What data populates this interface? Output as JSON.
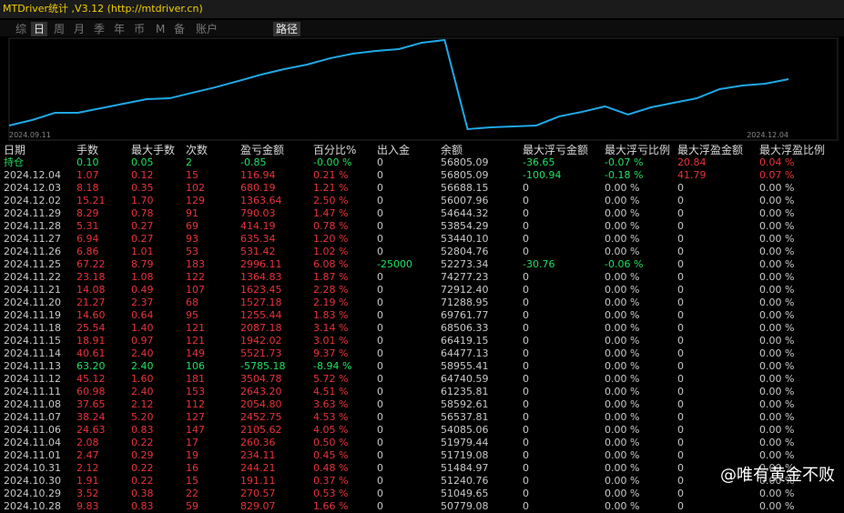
{
  "header": {
    "title": "MTDriver统计 ,V3.12 (http://mtdriver.cn)"
  },
  "tabs": [
    "综",
    "日",
    "周",
    "月",
    "季",
    "年",
    "币",
    "M",
    "备",
    "账户",
    "路径"
  ],
  "highlighted_tabs": [
    1,
    10
  ],
  "chart_data": {
    "type": "line",
    "color": "#1fa8e6",
    "ylim": [
      0,
      100
    ],
    "categories": [
      "2024.09.11",
      null,
      null,
      null,
      null,
      null,
      null,
      null,
      null,
      null,
      null,
      null,
      null,
      null,
      null,
      null,
      null,
      null,
      null,
      null,
      null,
      null,
      null,
      null,
      null,
      null,
      null,
      null,
      null,
      null,
      null,
      null,
      null,
      null,
      "2024.12.04"
    ],
    "values": [
      6.7,
      12.4,
      20,
      20,
      24.8,
      29.5,
      34.3,
      35.2,
      41,
      46.7,
      53.3,
      60,
      65.7,
      70.5,
      77.1,
      81.9,
      84.8,
      86.7,
      93.3,
      96.2,
      2.9,
      4.8,
      5.7,
      6.7,
      16.2,
      21,
      26.7,
      18.1,
      25.7,
      30.5,
      35.2,
      44.8,
      48.6,
      50.5,
      55.2
    ]
  },
  "table": {
    "columns": [
      "日期",
      "手数",
      "最大手数",
      "次数",
      "盈亏金额",
      "百分比%",
      "出入金",
      "余额",
      "最大浮亏金额",
      "最大浮亏比例",
      "最大浮盈金额",
      "最大浮盈比例"
    ],
    "rows": [
      [
        "持仓",
        "0.10",
        "0.05",
        "2",
        "-0.85",
        "-0.00 %",
        "0",
        "56805.09",
        "-36.65",
        "-0.07 %",
        "20.84",
        "0.04 %"
      ],
      [
        "2024.12.04",
        "1.07",
        "0.12",
        "15",
        "116.94",
        "0.21 %",
        "0",
        "56805.09",
        "-100.94",
        "-0.18 %",
        "41.79",
        "0.07 %"
      ],
      [
        "2024.12.03",
        "8.18",
        "0.35",
        "102",
        "680.19",
        "1.21 %",
        "0",
        "56688.15",
        "0",
        "0.00 %",
        "0",
        "0.00 %"
      ],
      [
        "2024.12.02",
        "15.21",
        "1.70",
        "129",
        "1363.64",
        "2.50 %",
        "0",
        "56007.96",
        "0",
        "0.00 %",
        "0",
        "0.00 %"
      ],
      [
        "2024.11.29",
        "8.29",
        "0.78",
        "91",
        "790.03",
        "1.47 %",
        "0",
        "54644.32",
        "0",
        "0.00 %",
        "0",
        "0.00 %"
      ],
      [
        "2024.11.28",
        "5.31",
        "0.27",
        "69",
        "414.19",
        "0.78 %",
        "0",
        "53854.29",
        "0",
        "0.00 %",
        "0",
        "0.00 %"
      ],
      [
        "2024.11.27",
        "6.94",
        "0.27",
        "93",
        "635.34",
        "1.20 %",
        "0",
        "53440.10",
        "0",
        "0.00 %",
        "0",
        "0.00 %"
      ],
      [
        "2024.11.26",
        "6.86",
        "1.01",
        "53",
        "531.42",
        "1.02 %",
        "0",
        "52804.76",
        "0",
        "0.00 %",
        "0",
        "0.00 %"
      ],
      [
        "2024.11.25",
        "67.22",
        "8.79",
        "183",
        "2996.11",
        "6.08 %",
        "-25000",
        "52273.34",
        "-30.76",
        "-0.06 %",
        "0",
        "0.00 %"
      ],
      [
        "2024.11.22",
        "23.18",
        "1.08",
        "122",
        "1364.83",
        "1.87 %",
        "0",
        "74277.23",
        "0",
        "0.00 %",
        "0",
        "0.00 %"
      ],
      [
        "2024.11.21",
        "14.08",
        "0.49",
        "107",
        "1623.45",
        "2.28 %",
        "0",
        "72912.40",
        "0",
        "0.00 %",
        "0",
        "0.00 %"
      ],
      [
        "2024.11.20",
        "21.27",
        "2.37",
        "68",
        "1527.18",
        "2.19 %",
        "0",
        "71288.95",
        "0",
        "0.00 %",
        "0",
        "0.00 %"
      ],
      [
        "2024.11.19",
        "14.60",
        "0.64",
        "95",
        "1255.44",
        "1.83 %",
        "0",
        "69761.77",
        "0",
        "0.00 %",
        "0",
        "0.00 %"
      ],
      [
        "2024.11.18",
        "25.54",
        "1.40",
        "121",
        "2087.18",
        "3.14 %",
        "0",
        "68506.33",
        "0",
        "0.00 %",
        "0",
        "0.00 %"
      ],
      [
        "2024.11.15",
        "18.91",
        "0.97",
        "121",
        "1942.02",
        "3.01 %",
        "0",
        "66419.15",
        "0",
        "0.00 %",
        "0",
        "0.00 %"
      ],
      [
        "2024.11.14",
        "40.61",
        "2.40",
        "149",
        "5521.73",
        "9.37 %",
        "0",
        "64477.13",
        "0",
        "0.00 %",
        "0",
        "0.00 %"
      ],
      [
        "2024.11.13",
        "63.20",
        "2.40",
        "106",
        "-5785.18",
        "-8.94 %",
        "0",
        "58955.41",
        "0",
        "0.00 %",
        "0",
        "0.00 %"
      ],
      [
        "2024.11.12",
        "45.12",
        "1.60",
        "181",
        "3504.78",
        "5.72 %",
        "0",
        "64740.59",
        "0",
        "0.00 %",
        "0",
        "0.00 %"
      ],
      [
        "2024.11.11",
        "60.98",
        "2.40",
        "153",
        "2643.20",
        "4.51 %",
        "0",
        "61235.81",
        "0",
        "0.00 %",
        "0",
        "0.00 %"
      ],
      [
        "2024.11.08",
        "37.65",
        "2.12",
        "112",
        "2054.80",
        "3.63 %",
        "0",
        "58592.61",
        "0",
        "0.00 %",
        "0",
        "0.00 %"
      ],
      [
        "2024.11.07",
        "38.24",
        "5.20",
        "127",
        "2452.75",
        "4.53 %",
        "0",
        "56537.81",
        "0",
        "0.00 %",
        "0",
        "0.00 %"
      ],
      [
        "2024.11.06",
        "24.63",
        "0.83",
        "147",
        "2105.62",
        "4.05 %",
        "0",
        "54085.06",
        "0",
        "0.00 %",
        "0",
        "0.00 %"
      ],
      [
        "2024.11.04",
        "2.08",
        "0.22",
        "17",
        "260.36",
        "0.50 %",
        "0",
        "51979.44",
        "0",
        "0.00 %",
        "0",
        "0.00 %"
      ],
      [
        "2024.11.01",
        "2.47",
        "0.29",
        "19",
        "234.11",
        "0.45 %",
        "0",
        "51719.08",
        "0",
        "0.00 %",
        "0",
        "0.00 %"
      ],
      [
        "2024.10.31",
        "2.12",
        "0.22",
        "16",
        "244.21",
        "0.48 %",
        "0",
        "51484.97",
        "0",
        "0.00 %",
        "0",
        "0.00 %"
      ],
      [
        "2024.10.30",
        "1.91",
        "0.22",
        "15",
        "191.11",
        "0.37 %",
        "0",
        "51240.76",
        "0",
        "0.00 %",
        "0",
        "0.00 %"
      ],
      [
        "2024.10.29",
        "3.52",
        "0.38",
        "22",
        "270.57",
        "0.53 %",
        "0",
        "51049.65",
        "0",
        "0.00 %",
        "0",
        "0.00 %"
      ],
      [
        "2024.10.28",
        "9.83",
        "0.83",
        "59",
        "829.07",
        "1.66 %",
        "0",
        "50779.08",
        "0",
        "0.00 %",
        "0",
        "0.00 %"
      ]
    ]
  },
  "colors": {
    "positive": "#e8323a",
    "negative": "#1fe060",
    "neutral": "#c8c8c8",
    "header": "#d8d8d8"
  },
  "watermark": "@唯有黄金不败"
}
